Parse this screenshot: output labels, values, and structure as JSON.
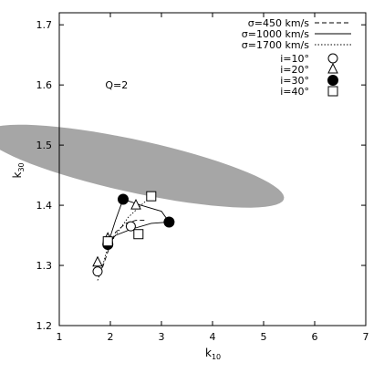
{
  "chart_data": {
    "type": "scatter",
    "xlabel": "k",
    "xlabel_sub": "10",
    "ylabel": "k",
    "ylabel_sub": "30",
    "xlim": [
      1,
      7
    ],
    "ylim": [
      1.2,
      1.72
    ],
    "xticks": [
      1,
      2,
      3,
      4,
      5,
      6,
      7
    ],
    "yticks": [
      1.2,
      1.3,
      1.4,
      1.5,
      1.6,
      1.7
    ],
    "ytick_labels": [
      "1.2",
      "1.3",
      "1.4",
      "1.5",
      "1.6",
      "1.7"
    ],
    "grid": false,
    "legend_position": "top-right",
    "region": {
      "label": "Q=2",
      "label_at": [
        2.15,
        1.6
      ],
      "center": [
        2.47,
        1.465
      ],
      "rx": 0.6,
      "ry": 0.185,
      "rotation_deg": 57,
      "color": "#a6a6a6"
    },
    "line_series": [
      {
        "name": "σ=450 km/s",
        "dash": "dashed",
        "points": [
          [
            1.8,
            1.285
          ],
          [
            1.9,
            1.31
          ],
          [
            2.0,
            1.335
          ],
          [
            2.1,
            1.355
          ],
          [
            2.3,
            1.37
          ],
          [
            2.5,
            1.375
          ],
          [
            2.7,
            1.375
          ]
        ]
      },
      {
        "name": "σ=1000 km/s",
        "dash": "solid",
        "points": [
          [
            1.95,
            1.335
          ],
          [
            2.1,
            1.35
          ],
          [
            2.4,
            1.36
          ],
          [
            2.8,
            1.37
          ],
          [
            3.15,
            1.372
          ],
          [
            3.0,
            1.39
          ],
          [
            2.6,
            1.4
          ],
          [
            2.25,
            1.41
          ],
          [
            2.1,
            1.375
          ],
          [
            1.95,
            1.335
          ]
        ]
      },
      {
        "name": "σ=1700 km/s",
        "dash": "dotted",
        "points": [
          [
            1.75,
            1.275
          ],
          [
            1.85,
            1.3
          ],
          [
            1.95,
            1.33
          ],
          [
            2.1,
            1.35
          ],
          [
            2.35,
            1.38
          ],
          [
            2.6,
            1.4
          ],
          [
            2.8,
            1.415
          ]
        ]
      }
    ],
    "marker_series": [
      {
        "name": "i=10°",
        "marker": "open-circle",
        "points": [
          [
            1.75,
            1.29
          ],
          [
            1.95,
            1.34
          ],
          [
            2.4,
            1.365
          ]
        ]
      },
      {
        "name": "i=20°",
        "marker": "open-triangle",
        "points": [
          [
            1.75,
            1.305
          ],
          [
            1.95,
            1.345
          ],
          [
            2.5,
            1.4
          ]
        ]
      },
      {
        "name": "i=30°",
        "marker": "filled-circle",
        "points": [
          [
            1.95,
            1.335
          ],
          [
            2.25,
            1.41
          ],
          [
            3.15,
            1.372
          ]
        ]
      },
      {
        "name": "i=40°",
        "marker": "open-square",
        "points": [
          [
            1.95,
            1.34
          ],
          [
            2.55,
            1.352
          ],
          [
            2.8,
            1.415
          ]
        ]
      }
    ]
  }
}
